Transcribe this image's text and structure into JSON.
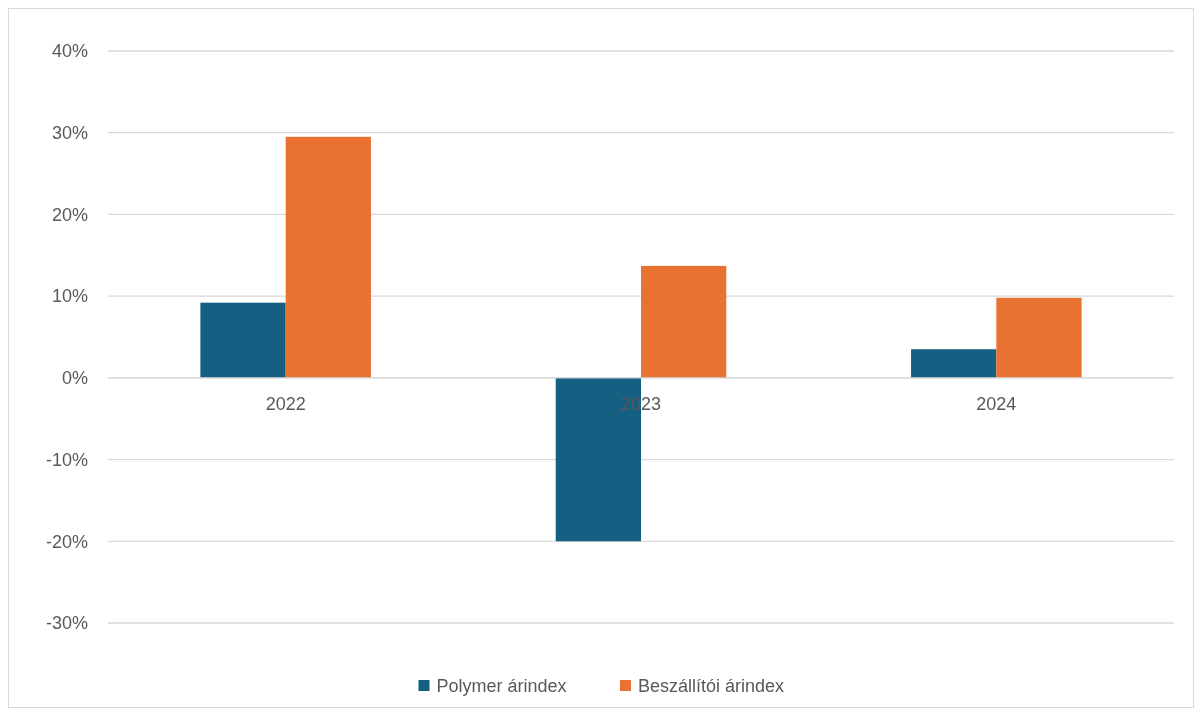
{
  "chart_data": {
    "type": "bar",
    "categories": [
      "2022",
      "2023",
      "2024"
    ],
    "series": [
      {
        "name": "Polymer árindex",
        "color": "#156082",
        "values": [
          9.2,
          -20,
          3.5
        ]
      },
      {
        "name": "Beszállítói árindex",
        "color": "#e97132",
        "values": [
          29.5,
          13.7,
          9.8
        ]
      }
    ],
    "ylim": [
      -30,
      40
    ],
    "yticks": [
      {
        "value": -30,
        "label": "-30%"
      },
      {
        "value": -20,
        "label": "-20%"
      },
      {
        "value": -10,
        "label": "-10%"
      },
      {
        "value": 0,
        "label": "0%"
      },
      {
        "value": 10,
        "label": "10%"
      },
      {
        "value": 20,
        "label": "20%"
      },
      {
        "value": 30,
        "label": "30%"
      },
      {
        "value": 40,
        "label": "40%"
      }
    ],
    "grid": "y",
    "legend": "bottom"
  }
}
